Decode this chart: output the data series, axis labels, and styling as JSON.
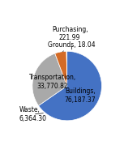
{
  "title": "",
  "labels": [
    "Buildings",
    "Transportation",
    "Waste",
    "Grounds",
    "Purchasing"
  ],
  "values": [
    76187.37,
    33770.82,
    6364.3,
    18.04,
    221.99
  ],
  "colors": [
    "#4472C4",
    "#A9A9A9",
    "#D46B27",
    "#C0C0C0",
    "#C0C0C0"
  ],
  "startangle": 90,
  "counterclock": false,
  "background_color": "#ffffff",
  "label_inside": [
    "Buildings,\n76,187.37",
    "Transportation,\n33,770.82"
  ],
  "label_outside": [
    "Waste,\n6,364.30",
    "Grounds, 18.04",
    "Purchasing,\n221.99"
  ],
  "fontsize": 5.5
}
